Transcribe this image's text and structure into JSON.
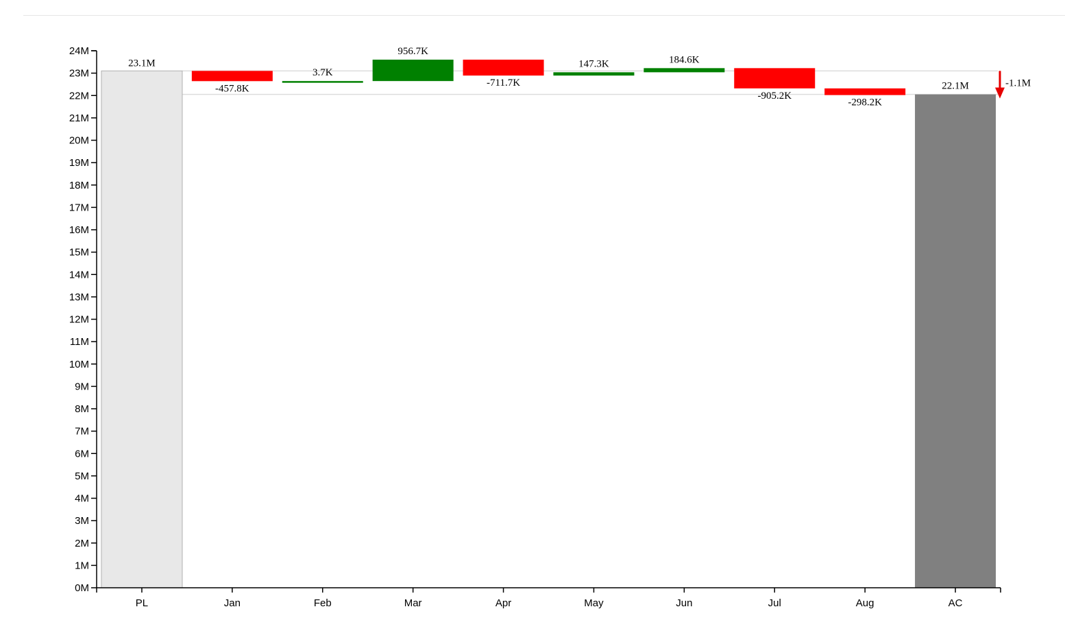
{
  "chart_data": {
    "type": "bar",
    "subtype": "waterfall",
    "categories": [
      "PL",
      "Jan",
      "Feb",
      "Mar",
      "Apr",
      "May",
      "Jun",
      "Jul",
      "Aug",
      "AC"
    ],
    "start": {
      "category": "PL",
      "value": 23.1,
      "label": "23.1M"
    },
    "end": {
      "category": "AC",
      "value": 22.05,
      "label": "22.1M"
    },
    "deltas": [
      {
        "category": "Jan",
        "value": -0.4578,
        "label": "-457.8K"
      },
      {
        "category": "Feb",
        "value": 0.0037,
        "label": "3.7K"
      },
      {
        "category": "Mar",
        "value": 0.9567,
        "label": "956.7K"
      },
      {
        "category": "Apr",
        "value": -0.7117,
        "label": "-711.7K"
      },
      {
        "category": "May",
        "value": 0.1473,
        "label": "147.3K"
      },
      {
        "category": "Jun",
        "value": 0.1846,
        "label": "184.6K"
      },
      {
        "category": "Jul",
        "value": -0.9052,
        "label": "-905.2K"
      },
      {
        "category": "Aug",
        "value": -0.2982,
        "label": "-298.2K"
      }
    ],
    "total_change": {
      "value": -1.1,
      "label": "-1.1M"
    },
    "y_ticks": [
      "0M",
      "1M",
      "2M",
      "3M",
      "4M",
      "5M",
      "6M",
      "7M",
      "8M",
      "9M",
      "10M",
      "11M",
      "12M",
      "13M",
      "14M",
      "15M",
      "16M",
      "17M",
      "18M",
      "19M",
      "20M",
      "21M",
      "22M",
      "23M",
      "24M"
    ],
    "ylim": [
      0,
      24
    ],
    "unit": "M",
    "colors": {
      "increase": "#008000",
      "decrease": "#ff0000",
      "start": "#e8e8e8",
      "end": "#808080",
      "arrow": "#e60000",
      "axis": "#000000"
    },
    "grid": false,
    "legend": "none"
  }
}
